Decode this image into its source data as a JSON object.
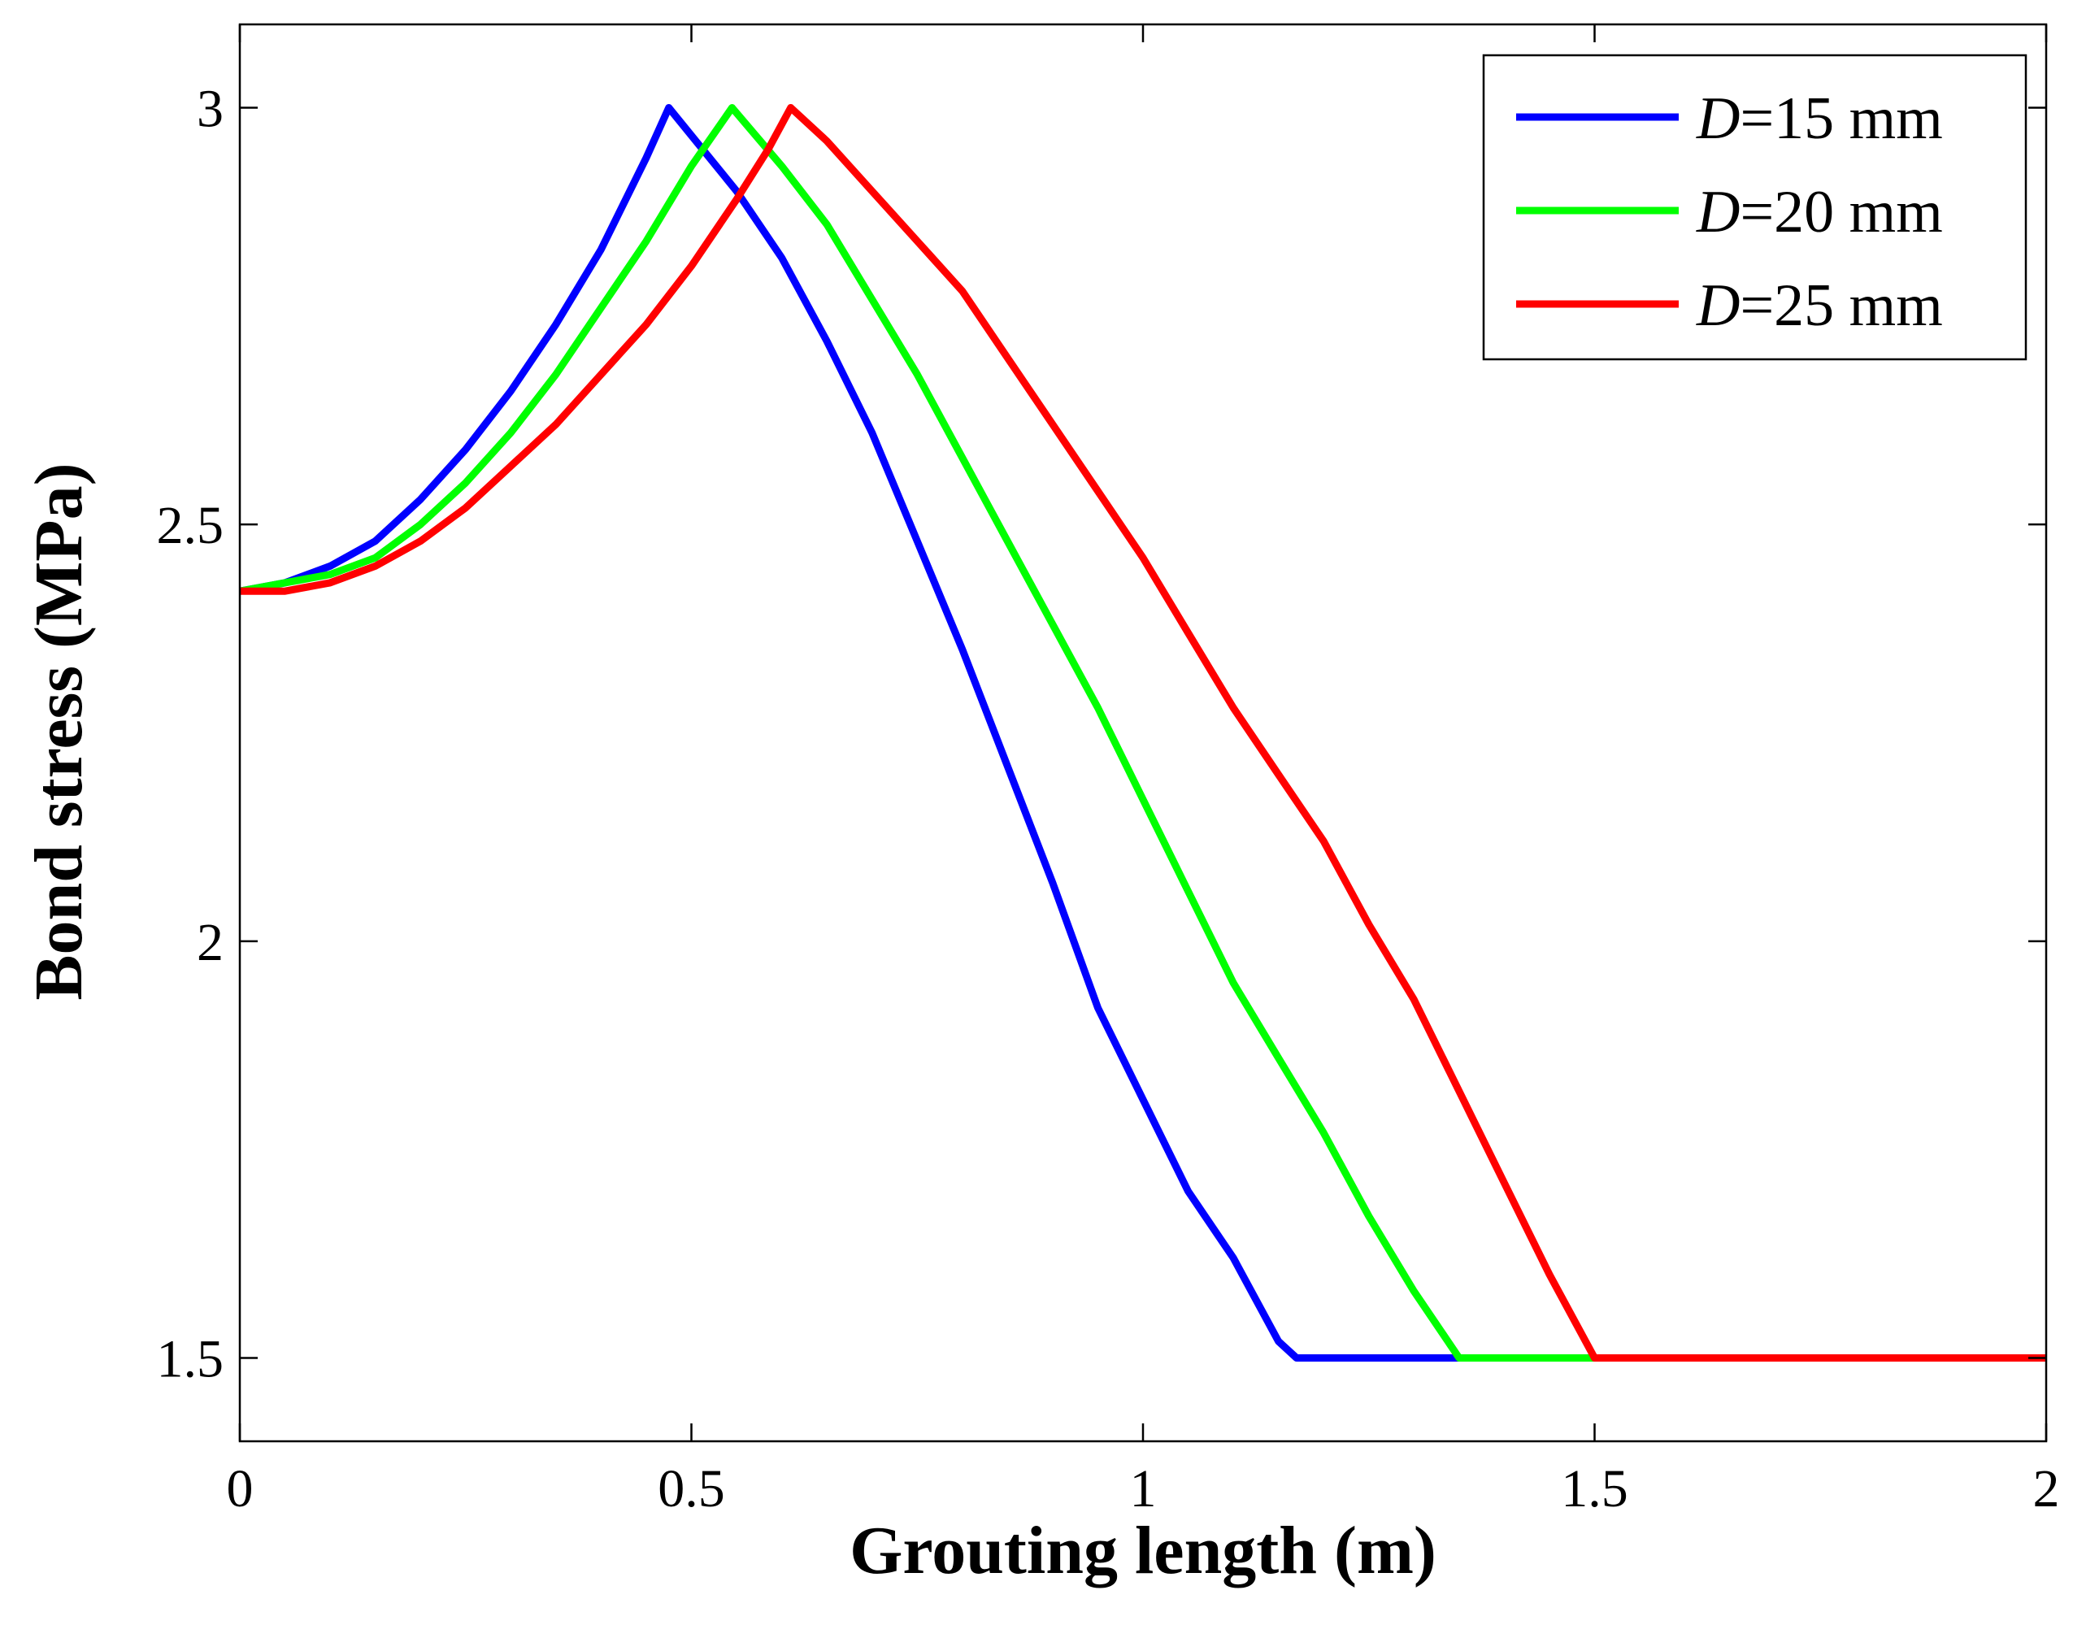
{
  "chart_data": {
    "type": "line",
    "title": "",
    "xlabel": "Grouting length (m)",
    "ylabel": "Bond stress (MPa)",
    "xlim": [
      0,
      2
    ],
    "ylim": [
      1.4,
      3.1
    ],
    "xticks": [
      0,
      0.5,
      1,
      1.5,
      2
    ],
    "xtick_labels": [
      "0",
      "0.5",
      "1",
      "1.5",
      "2"
    ],
    "yticks": [
      1.5,
      2,
      2.5,
      3
    ],
    "ytick_labels": [
      "1.5",
      "2",
      "2.5",
      "3"
    ],
    "grid": false,
    "legend_position": "top-right",
    "series": [
      {
        "name": "D=15 mm",
        "legend_var": "D",
        "legend_rest": "=15 mm",
        "color": "#0000ff",
        "x": [
          0,
          0.05,
          0.1,
          0.15,
          0.2,
          0.25,
          0.3,
          0.35,
          0.4,
          0.45,
          0.475,
          0.55,
          0.6,
          0.65,
          0.7,
          0.75,
          0.8,
          0.85,
          0.9,
          0.95,
          1.0,
          1.05,
          1.1,
          1.15,
          1.17,
          1.35
        ],
        "values": [
          2.42,
          2.43,
          2.45,
          2.48,
          2.53,
          2.59,
          2.66,
          2.74,
          2.83,
          2.94,
          3.0,
          2.9,
          2.82,
          2.72,
          2.61,
          2.48,
          2.35,
          2.21,
          2.07,
          1.92,
          1.81,
          1.7,
          1.62,
          1.52,
          1.5,
          1.5
        ]
      },
      {
        "name": "D=20 mm",
        "legend_var": "D",
        "legend_rest": "=20 mm",
        "color": "#00ff00",
        "x": [
          0,
          0.05,
          0.1,
          0.15,
          0.2,
          0.25,
          0.3,
          0.35,
          0.4,
          0.45,
          0.5,
          0.545,
          0.6,
          0.65,
          0.7,
          0.75,
          0.8,
          0.85,
          0.9,
          0.95,
          1.0,
          1.05,
          1.1,
          1.15,
          1.2,
          1.25,
          1.3,
          1.35,
          1.5
        ],
        "values": [
          2.42,
          2.43,
          2.44,
          2.46,
          2.5,
          2.55,
          2.61,
          2.68,
          2.76,
          2.84,
          2.93,
          3.0,
          2.93,
          2.86,
          2.77,
          2.68,
          2.58,
          2.48,
          2.38,
          2.28,
          2.17,
          2.06,
          1.95,
          1.86,
          1.77,
          1.67,
          1.58,
          1.5,
          1.5
        ]
      },
      {
        "name": "D=25 mm",
        "legend_var": "D",
        "legend_rest": "=25 mm",
        "color": "#ff0000",
        "x": [
          0,
          0.05,
          0.1,
          0.15,
          0.2,
          0.25,
          0.3,
          0.35,
          0.4,
          0.45,
          0.5,
          0.55,
          0.585,
          0.61,
          0.65,
          0.7,
          0.75,
          0.8,
          0.85,
          0.9,
          0.95,
          1.0,
          1.05,
          1.1,
          1.15,
          1.2,
          1.25,
          1.3,
          1.35,
          1.4,
          1.45,
          1.5,
          2.0
        ],
        "values": [
          2.42,
          2.42,
          2.43,
          2.45,
          2.48,
          2.52,
          2.57,
          2.62,
          2.68,
          2.74,
          2.81,
          2.89,
          2.95,
          3.0,
          2.96,
          2.9,
          2.84,
          2.78,
          2.7,
          2.62,
          2.54,
          2.46,
          2.37,
          2.28,
          2.2,
          2.12,
          2.02,
          1.93,
          1.82,
          1.71,
          1.6,
          1.5,
          1.5
        ]
      }
    ]
  }
}
